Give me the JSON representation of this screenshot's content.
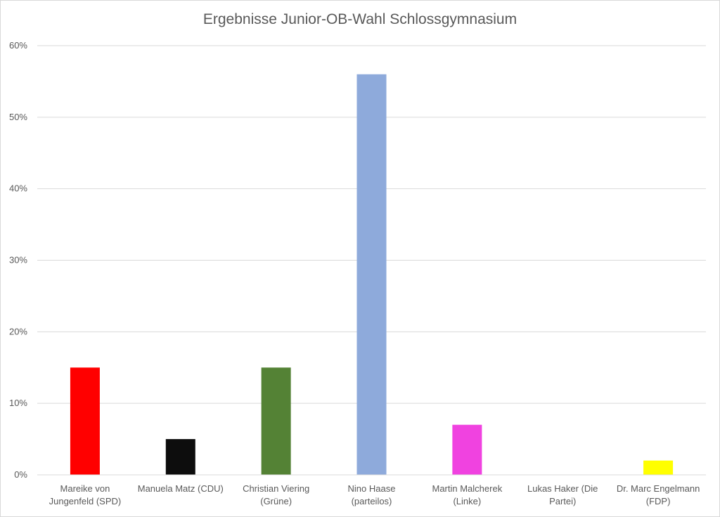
{
  "chart_data": {
    "type": "bar",
    "title": "Ergebnisse Junior-OB-Wahl Schlossgymnasium",
    "xlabel": "",
    "ylabel": "",
    "ylim": [
      0,
      60
    ],
    "yticks": [
      0,
      10,
      20,
      30,
      40,
      50,
      60
    ],
    "ytick_labels": [
      "0%",
      "10%",
      "20%",
      "30%",
      "40%",
      "50%",
      "60%"
    ],
    "grid": true,
    "legend": "none",
    "categories": [
      [
        "Mareike von",
        "Jungenfeld (SPD)"
      ],
      [
        "Manuela Matz (CDU)"
      ],
      [
        "Christian Viering",
        "(Grüne)"
      ],
      [
        "Nino Haase",
        "(parteilos)"
      ],
      [
        "Martin Malcherek",
        "(Linke)"
      ],
      [
        "Lukas Haker (Die",
        "Partei)"
      ],
      [
        "Dr. Marc Engelmann",
        "(FDP)"
      ]
    ],
    "values": [
      15,
      5,
      15,
      56,
      7,
      0,
      2
    ],
    "colors": [
      "#ff0000",
      "#0d0d0d",
      "#548235",
      "#8eaadb",
      "#f042e0",
      "#ffffff",
      "#ffff00"
    ]
  }
}
